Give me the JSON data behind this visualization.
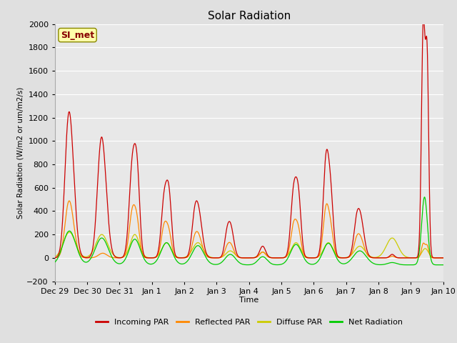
{
  "title": "Solar Radiation",
  "xlabel": "Time",
  "ylabel": "Solar Radiation (W/m2 or um/m2/s)",
  "ylim": [
    -200,
    2000
  ],
  "n_days": 12,
  "fig_bg_color": "#e0e0e0",
  "plot_bg_color": "#e8e8e8",
  "grid_color": "#ffffff",
  "annotation_text": "SI_met",
  "annotation_bg": "#ffffaa",
  "annotation_border": "#888800",
  "colors": {
    "incoming": "#cc0000",
    "reflected": "#ff8800",
    "diffuse": "#cccc00",
    "net": "#00cc00"
  },
  "legend_labels": [
    "Incoming PAR",
    "Reflected PAR",
    "Diffuse PAR",
    "Net Radiation"
  ],
  "x_tick_labels": [
    "Dec 29",
    "Dec 30",
    "Dec 31",
    "Jan 1",
    "Jan 2",
    "Jan 3",
    "Jan 4",
    "Jan 5",
    "Jan 6",
    "Jan 7",
    "Jan 8",
    "Jan 9",
    "Jan 10"
  ],
  "yticks": [
    -200,
    0,
    200,
    400,
    600,
    800,
    1000,
    1200,
    1400,
    1600,
    1800,
    2000
  ]
}
